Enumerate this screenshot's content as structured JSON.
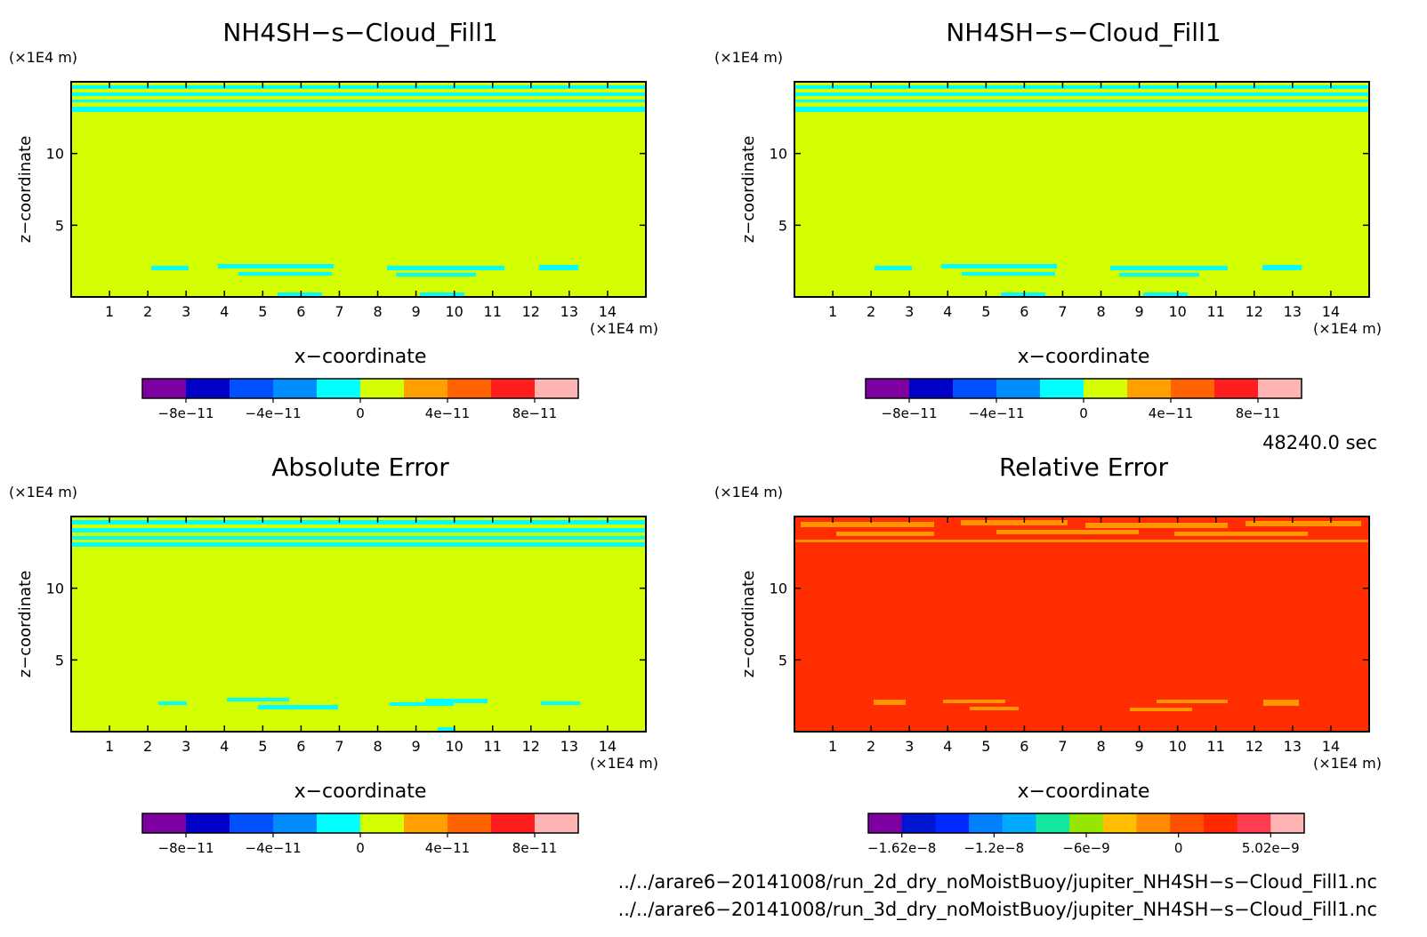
{
  "chart_data": [
    {
      "type": "heatmap",
      "title": "NH4SH−s−Cloud_Fill1",
      "xlabel": "x−coordinate",
      "ylabel": "z−coordinate",
      "x_unit": "(×1E4 m)",
      "y_unit": "(×1E4 m)",
      "xlim": [
        0,
        15
      ],
      "ylim": [
        0,
        15
      ],
      "x_ticks": [
        "1",
        "2",
        "3",
        "4",
        "5",
        "6",
        "7",
        "8",
        "9",
        "10",
        "11",
        "12",
        "13",
        "14"
      ],
      "y_ticks": [
        "5",
        "10"
      ],
      "colorbar": {
        "colors": [
          "#7f00a0",
          "#0000c8",
          "#0050ff",
          "#008cff",
          "#00ffff",
          "#d4ff00",
          "#ffa000",
          "#ff6400",
          "#ff1e1e",
          "#ffb4b4"
        ],
        "labels": [
          "−8e−11",
          "−4e−11",
          "0",
          "4e−11",
          "8e−11"
        ]
      },
      "field": {
        "background": "#d4ff00",
        "pattern": "#00ffff"
      }
    },
    {
      "type": "heatmap",
      "title": "NH4SH−s−Cloud_Fill1",
      "xlabel": "x−coordinate",
      "ylabel": "z−coordinate",
      "x_unit": "(×1E4 m)",
      "y_unit": "(×1E4 m)",
      "xlim": [
        0,
        15
      ],
      "ylim": [
        0,
        15
      ],
      "x_ticks": [
        "1",
        "2",
        "3",
        "4",
        "5",
        "6",
        "7",
        "8",
        "9",
        "10",
        "11",
        "12",
        "13",
        "14"
      ],
      "y_ticks": [
        "5",
        "10"
      ],
      "colorbar": {
        "colors": [
          "#7f00a0",
          "#0000c8",
          "#0050ff",
          "#008cff",
          "#00ffff",
          "#d4ff00",
          "#ffa000",
          "#ff6400",
          "#ff1e1e",
          "#ffb4b4"
        ],
        "labels": [
          "−8e−11",
          "−4e−11",
          "0",
          "4e−11",
          "8e−11"
        ]
      },
      "field": {
        "background": "#d4ff00",
        "pattern": "#00ffff"
      }
    },
    {
      "type": "heatmap",
      "title": "Absolute Error",
      "xlabel": "x−coordinate",
      "ylabel": "z−coordinate",
      "x_unit": "(×1E4 m)",
      "y_unit": "(×1E4 m)",
      "xlim": [
        0,
        15
      ],
      "ylim": [
        0,
        15
      ],
      "x_ticks": [
        "1",
        "2",
        "3",
        "4",
        "5",
        "6",
        "7",
        "8",
        "9",
        "10",
        "11",
        "12",
        "13",
        "14"
      ],
      "y_ticks": [
        "5",
        "10"
      ],
      "colorbar": {
        "colors": [
          "#7f00a0",
          "#0000c8",
          "#0050ff",
          "#008cff",
          "#00ffff",
          "#d4ff00",
          "#ffa000",
          "#ff6400",
          "#ff1e1e",
          "#ffb4b4"
        ],
        "labels": [
          "−8e−11",
          "−4e−11",
          "0",
          "4e−11",
          "8e−11"
        ]
      },
      "field": {
        "background": "#d4ff00",
        "pattern": "#00ffff"
      }
    },
    {
      "type": "heatmap",
      "title": "Relative Error",
      "xlabel": "x−coordinate",
      "ylabel": "z−coordinate",
      "x_unit": "(×1E4 m)",
      "y_unit": "(×1E4 m)",
      "xlim": [
        0,
        15
      ],
      "ylim": [
        0,
        15
      ],
      "x_ticks": [
        "1",
        "2",
        "3",
        "4",
        "5",
        "6",
        "7",
        "8",
        "9",
        "10",
        "11",
        "12",
        "13",
        "14"
      ],
      "y_ticks": [
        "5",
        "10"
      ],
      "colorbar": {
        "colors": [
          "#7f00a0",
          "#0014d2",
          "#0028ff",
          "#0080ff",
          "#00aaff",
          "#14e6a0",
          "#96e600",
          "#ffbe00",
          "#ff8c00",
          "#ff5000",
          "#ff2800",
          "#ff3c50",
          "#ffb4b4"
        ],
        "labels": [
          "−1.62e−8",
          "−1.2e−8",
          "−6e−9",
          "0",
          "5.02e−9"
        ]
      },
      "field": {
        "background": "#ff2d00",
        "pattern": "#ff9600"
      }
    }
  ],
  "time_label": "48240.0 sec",
  "files": [
    "../../arare6−20141008/run_2d_dry_noMoistBuoy/jupiter_NH4SH−s−Cloud_Fill1.nc",
    "../../arare6−20141008/run_3d_dry_noMoistBuoy/jupiter_NH4SH−s−Cloud_Fill1.nc"
  ]
}
